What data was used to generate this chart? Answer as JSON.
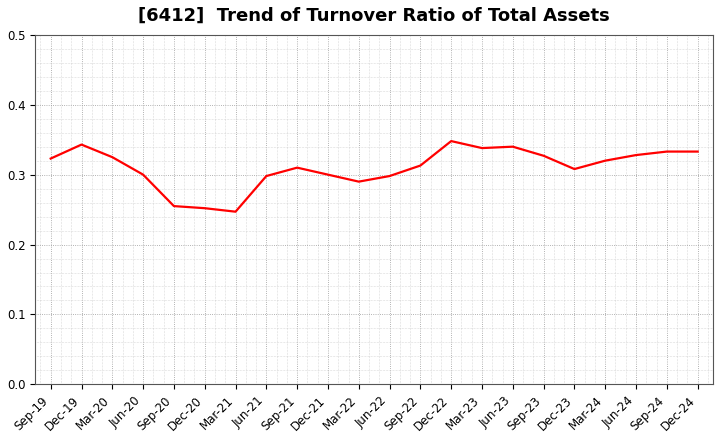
{
  "title": "[6412]  Trend of Turnover Ratio of Total Assets",
  "x_labels": [
    "Sep-19",
    "Dec-19",
    "Mar-20",
    "Jun-20",
    "Sep-20",
    "Dec-20",
    "Mar-21",
    "Jun-21",
    "Sep-21",
    "Dec-21",
    "Mar-22",
    "Jun-22",
    "Sep-22",
    "Dec-22",
    "Mar-23",
    "Jun-23",
    "Sep-23",
    "Dec-23",
    "Mar-24",
    "Jun-24",
    "Sep-24",
    "Dec-24"
  ],
  "y_values": [
    0.323,
    0.343,
    0.325,
    0.3,
    0.255,
    0.252,
    0.247,
    0.298,
    0.31,
    0.3,
    0.29,
    0.298,
    0.313,
    0.348,
    0.338,
    0.34,
    0.327,
    0.308,
    0.32,
    0.328,
    0.333,
    0.333
  ],
  "line_color": "#ff0000",
  "line_width": 1.6,
  "ylim": [
    0.0,
    0.5
  ],
  "yticks": [
    0.0,
    0.1,
    0.2,
    0.3,
    0.4,
    0.5
  ],
  "background_color": "#ffffff",
  "grid_color": "#999999",
  "title_fontsize": 13,
  "tick_fontsize": 8.5
}
